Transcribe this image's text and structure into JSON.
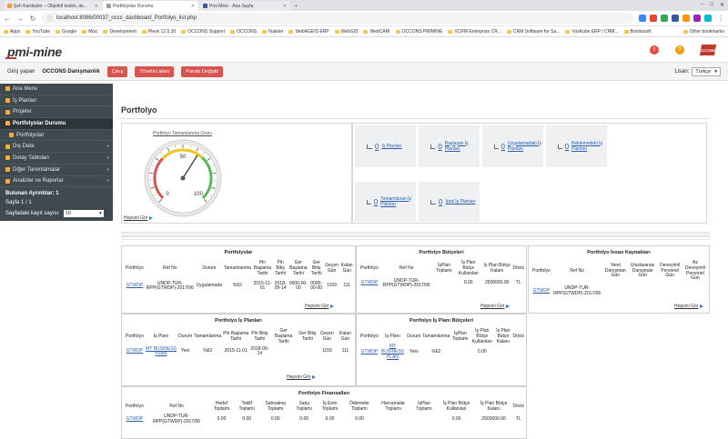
{
  "browser": {
    "tabs": [
      {
        "title": "Şeh Kardeşler – Objektif teslim, ak...",
        "color": "#f2994a"
      },
      {
        "title": "Portfolyolar Durumu",
        "color": "#9e9e9e"
      },
      {
        "title": "Pmi-Mine - Ana Sayfa",
        "color": "#3b5998"
      }
    ],
    "url": "localhost:8086/00037_occc_dashboard_Portfolyo_list.php",
    "bookmarks": [
      "Apps",
      "YouTube",
      "Google",
      "Misc",
      "Development",
      "Plesk 12.5.30",
      "OCCONS Support",
      "OCCONS",
      "İhaleler",
      "WebAGEIS ERP",
      "WebGIS",
      "WebCARI",
      "OCCONS PMIMINE",
      "XCRM Enterprise CR...",
      "CRM Software for Sa...",
      "VosKube ERP | CRM...",
      "Borstasoft"
    ],
    "other_bookmarks": "Other bookmarks",
    "extension_colors": [
      "#4285f4",
      "#ea4335",
      "#34a853",
      "#3b5998",
      "#ff9800",
      "#9c27b0",
      "#00bcd4"
    ]
  },
  "header": {
    "logo": "pmi-mine",
    "icon_colors": [
      "#e74c3c",
      "#f39c12",
      "#c0392b"
    ],
    "brand": "OCCONS"
  },
  "userbar": {
    "login_label": "Giriş yapan",
    "user_name": "OCCONS Danışmanlık",
    "logout": "Çıkış",
    "admin": "Yönetici alanı",
    "change_password": "Parola Değiştir",
    "language_label": "Lisan:",
    "language": "Türkçe"
  },
  "sidebar": {
    "items": [
      {
        "label": "Ana Menu",
        "active": false,
        "arrow": false
      },
      {
        "label": "İş Planları",
        "active": false,
        "arrow": false
      },
      {
        "label": "Projeler",
        "active": false,
        "arrow": false
      },
      {
        "label": "Portfolyolar Durumu",
        "active": true,
        "arrow": false
      },
      {
        "label": "Portfolyolar",
        "active": false,
        "arrow": false
      },
      {
        "label": "Dış Data",
        "active": false,
        "arrow": true
      },
      {
        "label": "Detay Tabloları",
        "active": false,
        "arrow": true
      },
      {
        "label": "Diğer Tanımlamalar",
        "active": false,
        "arrow": true
      },
      {
        "label": "Analizler ve Raporlar",
        "active": false,
        "arrow": true
      }
    ],
    "records_found": "Bulunan Ayrıntılar: 1",
    "page": "Sayfa 1 / 1",
    "per_page_label": "Sayfadaki kayıt sayısı:",
    "per_page": "10"
  },
  "main": {
    "title": "Portfolyo",
    "gauge": {
      "title": "Portfolyo Tamamlanma Oranı",
      "value": 62,
      "min": 0,
      "max": 100,
      "ticks": [
        "0",
        "10",
        "20",
        "30",
        "40",
        "50",
        "60",
        "70",
        "80",
        "90",
        "100"
      ],
      "see_all": "Hepsini Gör"
    },
    "stats": [
      {
        "num": "0",
        "label": "İş Planları"
      },
      {
        "num": "0",
        "label": "Başlayan İş Planları"
      },
      {
        "num": "0",
        "label": "Uygulamadaki İş Planları"
      },
      {
        "num": "0",
        "label": "Beklemedeki İş Planları"
      },
      {
        "num": "0",
        "label": "Tamamlanan İş Planları"
      },
      {
        "num": "0",
        "label": "İptal İş Planları"
      }
    ],
    "see_all": "Hepsini Gör",
    "portfolios": {
      "title": "Portfolyolar",
      "headers": [
        "Portfolyo",
        "Ref No",
        "Durum",
        "Tamamlanma",
        "Pln Başlama Tarihi",
        "Pln Bitiş Tarihi",
        "Ger Başlama Tarihi",
        "Ger Bitiş Tarihi",
        "Geçen Gün",
        "Kalan Gün"
      ],
      "row": [
        "GTWDP",
        "UNDP-TUR-RPP(GTWDP)-2017/06",
        "Uygulamada",
        "%62",
        "2015-11-01",
        "2018-09-14",
        "0000-00-00",
        "0000-00-00",
        "1159",
        "111"
      ]
    },
    "portfolio_budgets": {
      "title": "Portfolyo Bütçeleri",
      "headers": [
        "Portfolyo",
        "Ref No",
        "İşPlan Toplamı",
        "İş Plan Bütçe Kullanılan",
        "İş Plan Bütçe Kalanı",
        "Döviz"
      ],
      "row": [
        "GTWDP",
        "UNDP-TUR-RPP(GTWDP)-2017/06",
        "",
        "0.00",
        "2500000.00",
        "TL"
      ]
    },
    "portfolio_hr": {
      "title": "Portfolyo İnsan Kaynakları",
      "headers": [
        "Portfolyo",
        "Ref No",
        "Yerel Danışman Gün",
        "Uluslararası Danışman Gün",
        "Deneyimli Personel Gün",
        "Az Deneyimli Personel Gün"
      ],
      "row": [
        "GTWDP",
        "UNDP-TUR-RPP(GTWDP)-2017/06",
        "",
        "",
        "",
        ""
      ]
    },
    "workplans": {
      "title": "Portfolyo İş Planları",
      "headers": [
        "Portfolyo",
        "İş Planı",
        "Durum",
        "Tamamlanma",
        "Pln Başlama Tarihi",
        "Pln Bitiş Tarihi",
        "Ger Başlama Tarihi",
        "Ger Bitiş Tarihi",
        "Geçen Gün",
        "Kalan Gün"
      ],
      "row": [
        "GTWDP",
        "MY BUSINESS PLAN",
        "Yeni",
        "%62",
        "2015-11-01",
        "2018-09-14",
        "",
        "",
        "1159",
        "111"
      ]
    },
    "workplan_budgets": {
      "title": "Portfolyo İş Planı Bütçeleri",
      "headers": [
        "Portfolyo",
        "İş Planı",
        "Durum",
        "Tamamlanma",
        "İşPlan Toplamı",
        "İş Plan Bütçe Kullanılan",
        "İş Plan Bütçe Kalanı",
        "Döviz"
      ],
      "row": [
        "GTWDP",
        "MY BUSINESS PLAN",
        "Yeni",
        "%62",
        "",
        "0.00",
        "",
        ""
      ]
    },
    "financials": {
      "title": "Portfolyo Finansalları",
      "headers": [
        "Portfolyo",
        "Ref No",
        "Hedef Toplamı",
        "Teklif Toplamı",
        "Satınalma Toplamı",
        "Satış Toplamı",
        "İş Emri Toplamı",
        "Ödemeler Toplamı",
        "Harcamalar Toplamı",
        "İşPlan Toplamı",
        "İş Plan Bütçe Kullanılan",
        "İş Plan Bütçe Kalanı",
        "Döviz"
      ],
      "row": [
        "GTWDP",
        "UNDP-TUR-RPP(GTWDP)-2017/06",
        "0.00",
        "0.00",
        "0.00",
        "0.00",
        "0.00",
        "0.00",
        "",
        "",
        "0.00",
        "2500000.00",
        "TL"
      ]
    }
  }
}
